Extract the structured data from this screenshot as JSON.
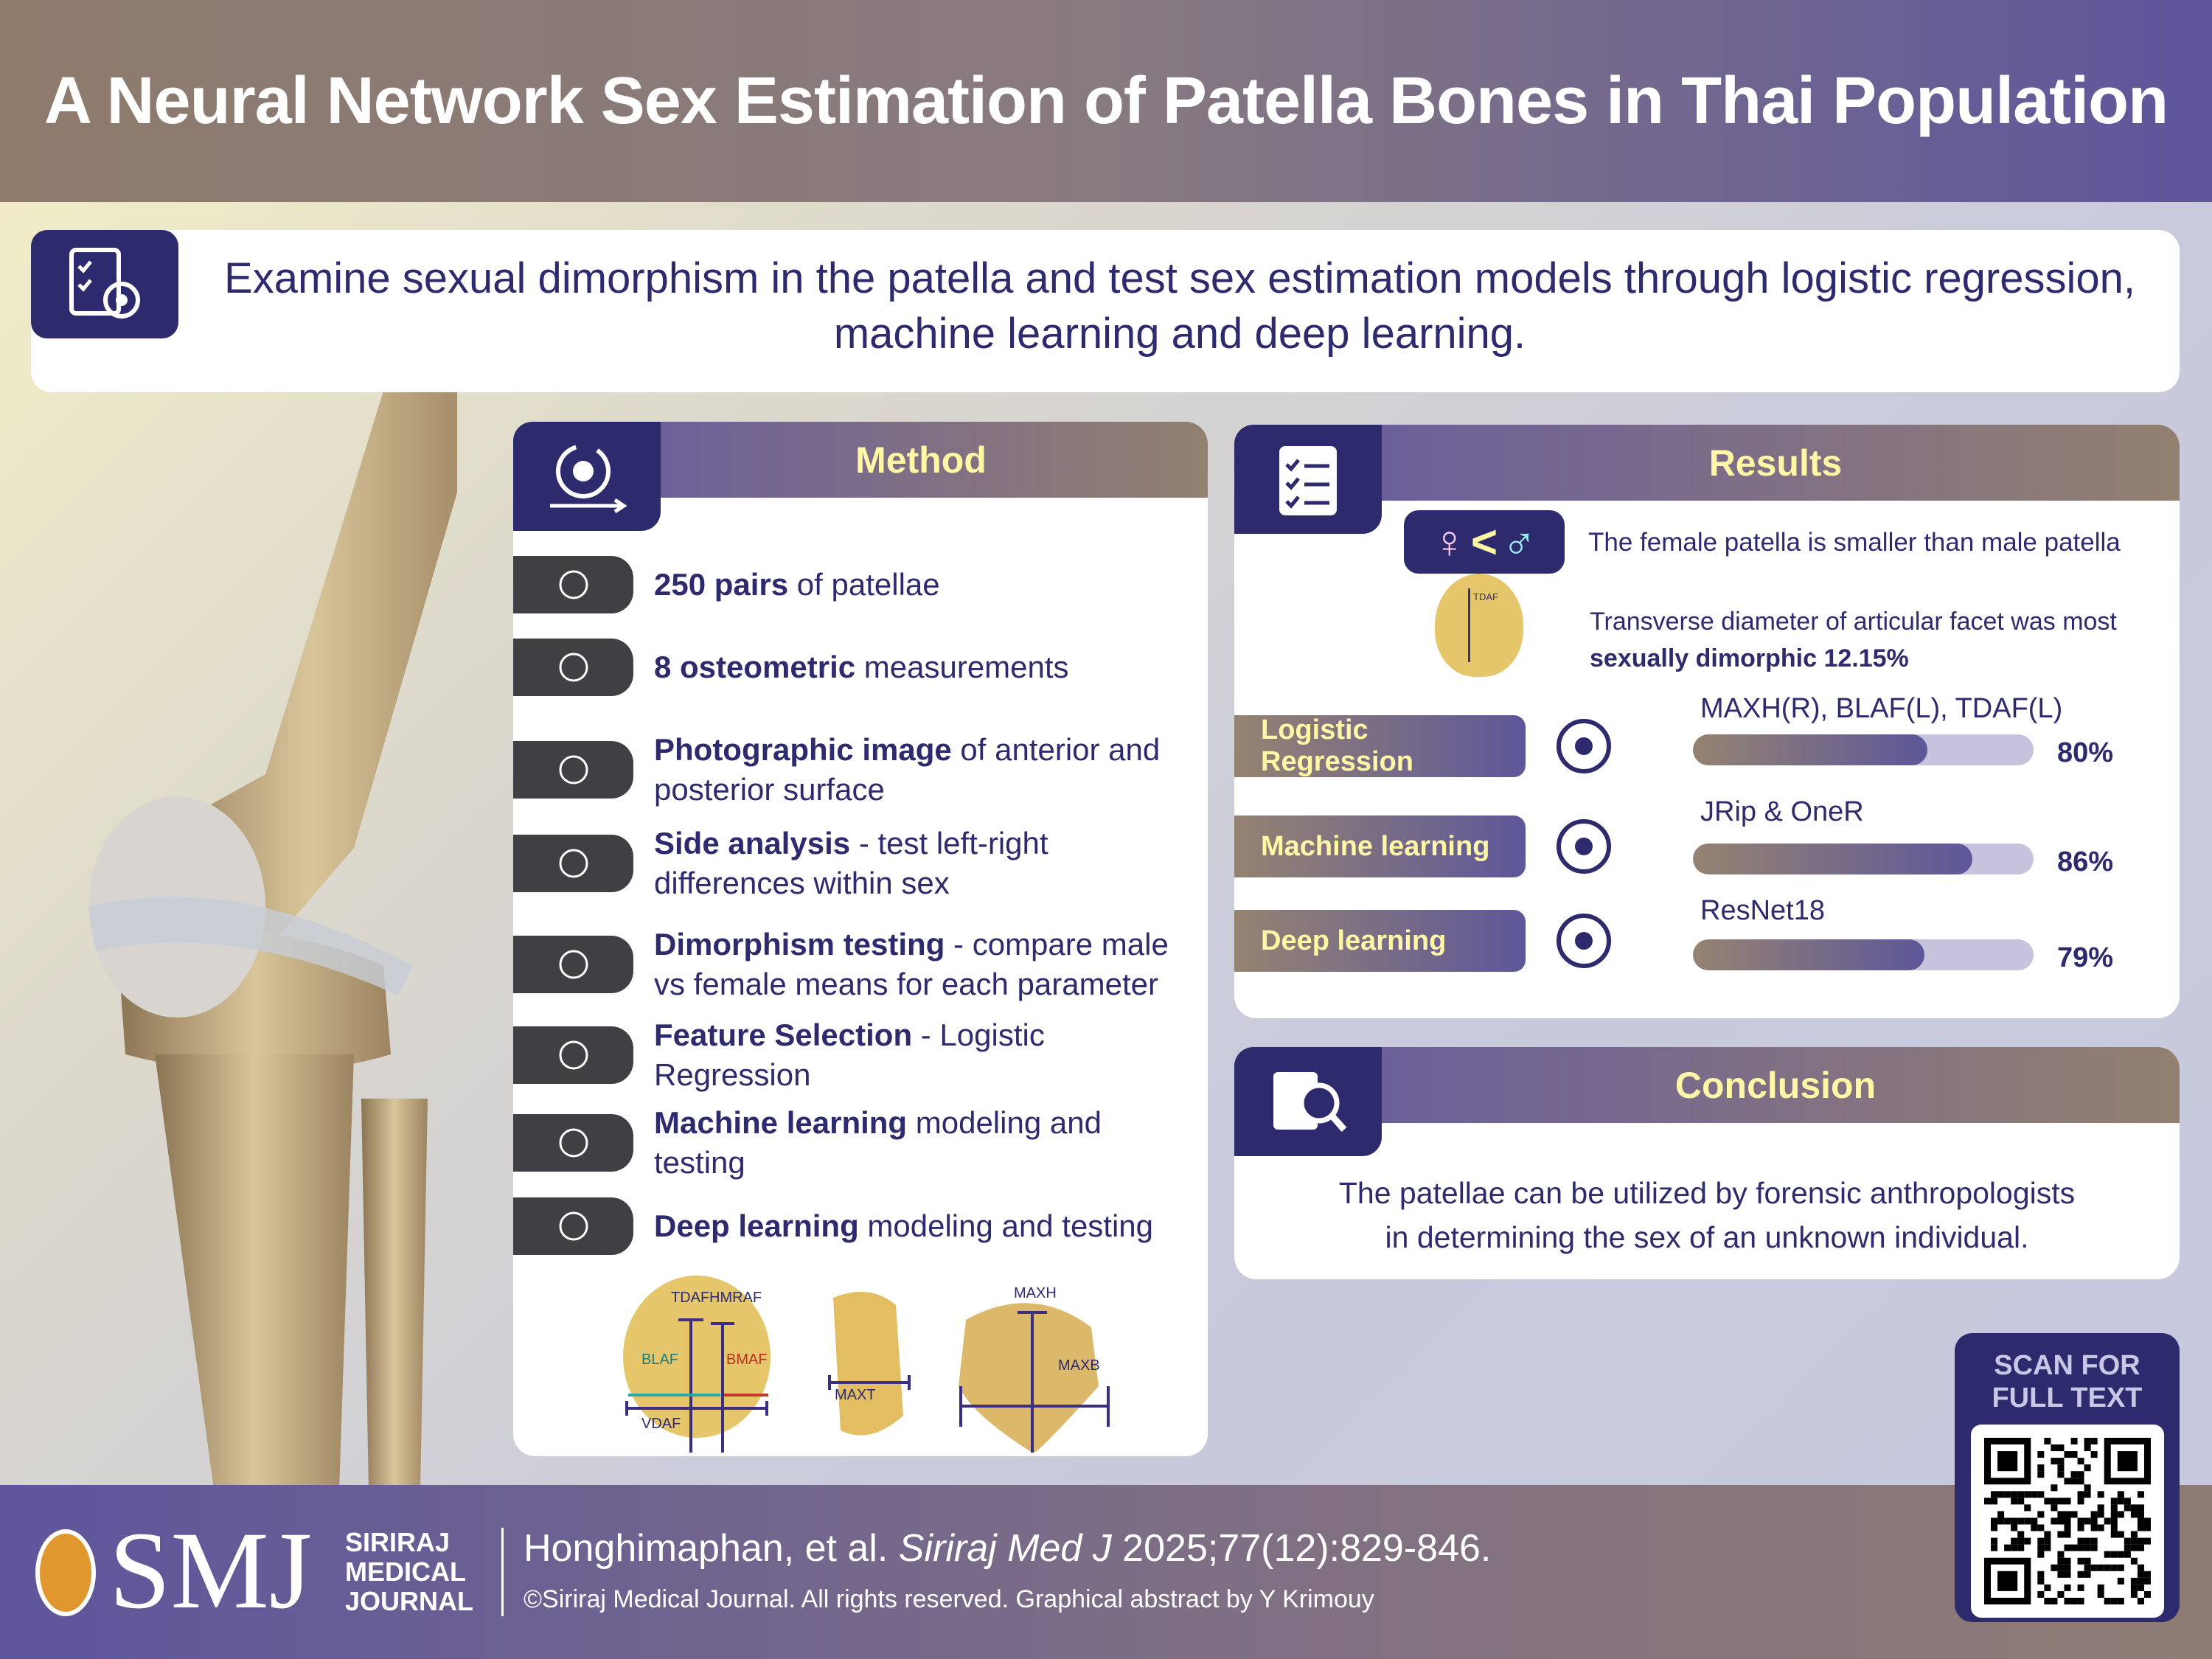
{
  "header": {
    "title": "A Neural Network Sex Estimation of Patella Bones in Thai Population"
  },
  "objective": {
    "icon": "checklist-target-icon",
    "text": "Examine sexual dimorphism in the patella and test sex estimation models through logistic regression, machine learning and deep learning."
  },
  "method": {
    "title": "Method",
    "icon": "gear-cycle-icon",
    "items": [
      {
        "icon": "knees-icon",
        "bold": "250 pairs",
        "rest": " of patellae"
      },
      {
        "icon": "ruler-icon",
        "bold": "8 osteometric",
        "rest": " measurements"
      },
      {
        "icon": "photo-icon",
        "bold": "Photographic image",
        "rest": " of anterior and posterior surface"
      },
      {
        "icon": "leg-icon",
        "bold": "Side analysis",
        "rest": " - test left-right differences within sex"
      },
      {
        "icon": "gender-icon",
        "bold": "Dimorphism testing",
        "rest": " - compare male vs female means for each parameter"
      },
      {
        "icon": "scatter-chart-icon",
        "bold": "Feature Selection",
        "rest": " - Logistic Regression"
      },
      {
        "icon": "brain-icon",
        "bold": "Machine learning",
        "rest": " modeling and testing"
      },
      {
        "icon": "network-brain-icon",
        "bold": "Deep learning",
        "rest": " modeling and testing"
      }
    ],
    "diagram_labels": {
      "tdaf": "TDAF",
      "hmraf": "HMRAF",
      "blaf": "BLAF",
      "bmaf": "BMAF",
      "vdaf": "VDAF",
      "maxt": "MAXT",
      "maxh": "MAXH",
      "maxb": "MAXB"
    }
  },
  "results": {
    "title": "Results",
    "icon": "clipboard-check-icon",
    "finding1": "The female patella is smaller than male patella",
    "female_symbol": "♀",
    "lt": "<",
    "male_symbol": "♂",
    "tdaf_label": "TDAF",
    "finding2_plain": "Transverse diameter of articular facet was most",
    "finding2_bold": "sexually dimorphic",
    "finding2_value": "12.15%",
    "models": [
      {
        "label": "Logistic Regression",
        "icon": "scatter-chart-icon",
        "caption": "MAXH(R), BLAF(L), TDAF(L)",
        "percent": 80,
        "percent_text": "80%"
      },
      {
        "label": "Machine learning",
        "icon": "brain-circuit-icon",
        "caption": "JRip & OneR",
        "percent": 86,
        "percent_text": "86%"
      },
      {
        "label": "Deep learning",
        "icon": "network-brain-icon",
        "caption": "ResNet18",
        "percent": 79,
        "percent_text": "79%"
      }
    ]
  },
  "conclusion": {
    "title": "Conclusion",
    "icon": "magnifier-document-icon",
    "text1": "The patellae can be utilized by forensic anthropologists",
    "text2": "in determining the sex of an unknown individual."
  },
  "qr": {
    "label1": "SCAN FOR",
    "label2": "FULL TEXT"
  },
  "footer": {
    "logo": "SMJ",
    "journal1": "SIRIRAJ",
    "journal2": "MEDICAL",
    "journal3": "JOURNAL",
    "citation_authors": "Honghimaphan, et al. ",
    "citation_journal": "Siriraj Med J",
    "citation_rest": " 2025;77(12):829-846.",
    "copyright": "©Siriraj Medical Journal. All rights reserved. Graphical abstract by Y Krimouy"
  },
  "colors": {
    "navy": "#2e2a6e",
    "purple": "#5d579a",
    "taupe": "#958371",
    "yellow": "#fff7a6"
  }
}
